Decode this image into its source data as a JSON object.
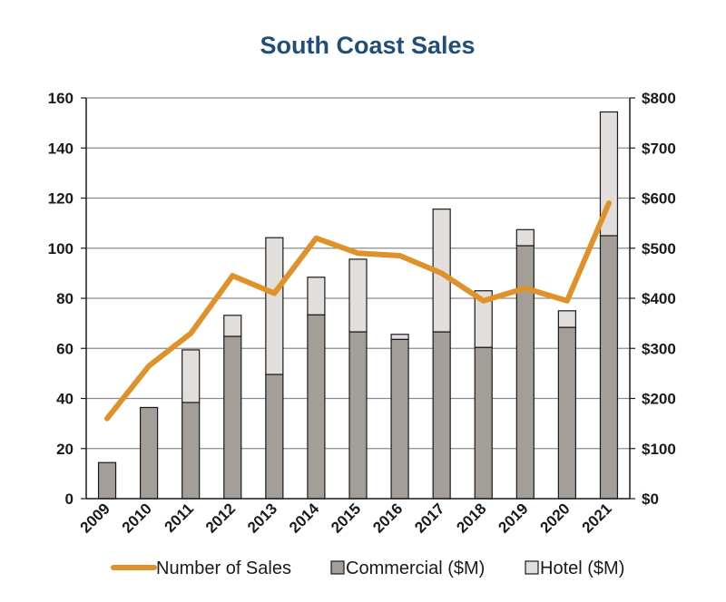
{
  "chart_data": {
    "type": "bar",
    "title": "South Coast Sales",
    "categories": [
      "2009",
      "2010",
      "2011",
      "2012",
      "2013",
      "2014",
      "2015",
      "2016",
      "2017",
      "2018",
      "2019",
      "2020",
      "2021"
    ],
    "series": [
      {
        "name": "Commercial ($M)",
        "kind": "bar",
        "axis": "right",
        "color": "#a39f98",
        "values": [
          72,
          182,
          192,
          324,
          248,
          367,
          333,
          318,
          333,
          302,
          505,
          342,
          525
        ]
      },
      {
        "name": "Hotel ($M)",
        "kind": "bar",
        "axis": "right",
        "color": "#e1dedb",
        "values": [
          0,
          0,
          105,
          42,
          273,
          75,
          145,
          10,
          245,
          113,
          32,
          33,
          247
        ]
      },
      {
        "name": "Number of Sales",
        "kind": "line",
        "axis": "left",
        "color": "#e0922a",
        "values": [
          32,
          53,
          66,
          89,
          82,
          104,
          98,
          97,
          90,
          79,
          84,
          79,
          118
        ]
      }
    ],
    "stacked": true,
    "y_left": {
      "ylim": [
        0,
        160
      ],
      "ticks": [
        "0",
        "20",
        "40",
        "60",
        "80",
        "100",
        "120",
        "140",
        "160"
      ]
    },
    "y_right": {
      "ylim": [
        0,
        800
      ],
      "ticks": [
        "$0",
        "$100",
        "$200",
        "$300",
        "$400",
        "$500",
        "$600",
        "$700",
        "$800"
      ]
    },
    "grid": true,
    "legend_position": "bottom",
    "legend": [
      "Number of Sales",
      "Commercial ($M)",
      "Hotel ($M)"
    ],
    "colors": {
      "title": "#1f4e79",
      "axis": "#1a1a1a",
      "grid": "#8c8c8c",
      "bar_stroke": "#1a1a1a"
    }
  }
}
